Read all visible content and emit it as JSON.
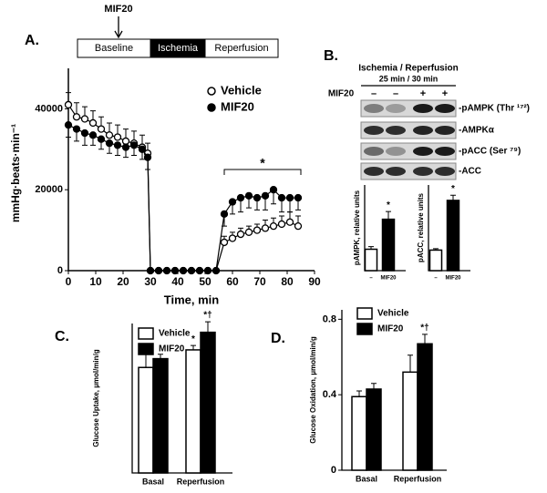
{
  "blot": {
    "panel_label": "B.",
    "header": "Ischemia / Reperfusion",
    "times": "25 min / 30 min",
    "treatment": "MIF20",
    "lanes": [
      "–",
      "–",
      "+",
      "+"
    ],
    "bands": [
      "-pAMPK (Thr ¹⁷²)",
      "-AMPKα",
      "-pACC (Ser ⁷⁹)",
      "-ACC"
    ]
  },
  "chart_data": [
    {
      "type": "line",
      "panel_label": "A.",
      "protocol": [
        "Baseline",
        "Ischemia",
        "Reperfusion"
      ],
      "treatment_label": "MIF20",
      "x_label": "Time, min",
      "y_label": "mmHg·beats·min⁻¹",
      "x": [
        0,
        3,
        6,
        9,
        12,
        15,
        18,
        21,
        24,
        27,
        29,
        30,
        33,
        36,
        39,
        42,
        45,
        48,
        51,
        54,
        57,
        60,
        63,
        66,
        69,
        72,
        75,
        78,
        81,
        84
      ],
      "series": [
        {
          "name": "Vehicle",
          "color": "#000000",
          "marker_fill": "#ffffff",
          "values": [
            41000,
            38000,
            37500,
            36500,
            35000,
            33500,
            33000,
            32000,
            31500,
            30500,
            29000,
            0,
            0,
            0,
            0,
            0,
            0,
            0,
            0,
            0,
            7000,
            8000,
            9000,
            9500,
            10000,
            10500,
            11000,
            11500,
            12000,
            11000
          ],
          "errors": [
            3000,
            3500,
            3000,
            3000,
            3000,
            3000,
            3000,
            3000,
            3000,
            3000,
            2500,
            0,
            0,
            0,
            0,
            0,
            0,
            0,
            0,
            0,
            1500,
            1500,
            1500,
            1500,
            1500,
            2000,
            2000,
            2000,
            2500,
            2500
          ]
        },
        {
          "name": "MIF20",
          "color": "#000000",
          "marker_fill": "#000000",
          "values": [
            36000,
            35000,
            34000,
            33500,
            32500,
            31500,
            31000,
            30500,
            31000,
            30000,
            28000,
            0,
            0,
            0,
            0,
            0,
            0,
            0,
            0,
            0,
            14000,
            17000,
            18000,
            18500,
            18000,
            18500,
            20000,
            18000,
            18000,
            18000
          ],
          "errors": [
            3000,
            3000,
            3000,
            2500,
            2500,
            2500,
            2500,
            2500,
            2500,
            2500,
            3000,
            0,
            0,
            0,
            0,
            0,
            0,
            0,
            0,
            0,
            3000,
            3000,
            3500,
            3000,
            3000,
            3500,
            3500,
            3500,
            3500,
            3000
          ]
        }
      ],
      "xlim": [
        0,
        90
      ],
      "xticks": [
        0,
        10,
        20,
        30,
        40,
        50,
        60,
        70,
        80,
        90
      ],
      "ylim": [
        0,
        50000
      ],
      "yticks": [
        0,
        20000,
        40000
      ],
      "annotation": "*",
      "legend": "upper right"
    },
    {
      "type": "bar",
      "y_label": "pAMPK, relative units",
      "categories": [
        "–",
        "MIF20"
      ],
      "values": [
        0.5,
        1.2
      ],
      "errors": [
        0.06,
        0.18
      ],
      "colors": [
        "#ffffff",
        "#000000"
      ],
      "stars": [
        null,
        "*"
      ],
      "ylim": [
        0,
        2
      ]
    },
    {
      "type": "bar",
      "y_label": "pACC, relative units",
      "categories": [
        "–",
        "MIF20"
      ],
      "values": [
        1.2,
        4.1
      ],
      "errors": [
        0.08,
        0.3
      ],
      "colors": [
        "#ffffff",
        "#000000"
      ],
      "stars": [
        null,
        "*"
      ],
      "ylim": [
        0,
        5
      ]
    },
    {
      "type": "bar",
      "panel_label": "C.",
      "y_label": "Glucose Uptake, µmol/min/g",
      "categories": [
        "Basal",
        "Reperfusion"
      ],
      "series": [
        {
          "name": "Vehicle",
          "color": "#ffffff",
          "values": [
            1.2,
            1.4
          ],
          "errors": [
            0.17,
            0.05
          ],
          "stars": [
            null,
            "*"
          ]
        },
        {
          "name": "MIF20",
          "color": "#000000",
          "values": [
            1.3,
            1.6
          ],
          "errors": [
            0.05,
            0.12
          ],
          "stars": [
            null,
            "*†"
          ]
        }
      ],
      "ylim": [
        0,
        1.7
      ],
      "legend": "upper left"
    },
    {
      "type": "bar",
      "panel_label": "D.",
      "y_label": "Glucose Oxidation, µmol/min/g",
      "categories": [
        "Basal",
        "Reperfusion"
      ],
      "series": [
        {
          "name": "Vehicle",
          "color": "#ffffff",
          "values": [
            0.39,
            0.52
          ],
          "errors": [
            0.03,
            0.09
          ]
        },
        {
          "name": "MIF20",
          "color": "#000000",
          "values": [
            0.43,
            0.67
          ],
          "errors": [
            0.03,
            0.05
          ],
          "stars": [
            null,
            "*†"
          ]
        }
      ],
      "ylim": [
        0,
        0.85
      ],
      "yticks": [
        0,
        0.4,
        0.8
      ],
      "legend": "upper left"
    }
  ]
}
